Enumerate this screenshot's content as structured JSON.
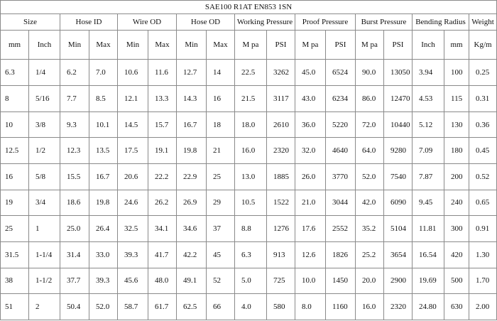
{
  "table": {
    "title": "SAE100 R1AT EN853 1SN",
    "groups": [
      "Size",
      "Hose ID",
      "Wire OD",
      "Hose OD",
      "Working Pressure",
      "Proof Pressure",
      "Burst Pressure",
      "Bending Radius",
      "Weight"
    ],
    "subheaders": [
      "mm",
      "Inch",
      "Min",
      "Max",
      "Min",
      "Max",
      "Min",
      "Max",
      "M pa",
      "PSI",
      "M pa",
      "PSI",
      "M pa",
      "PSI",
      "Inch",
      "mm",
      "Kg/m"
    ],
    "rows": [
      [
        "6.3",
        "1/4",
        "6.2",
        "7.0",
        "10.6",
        "11.6",
        "12.7",
        "14",
        "22.5",
        "3262",
        "45.0",
        "6524",
        "90.0",
        "13050",
        "3.94",
        "100",
        "0.25"
      ],
      [
        "8",
        "5/16",
        "7.7",
        "8.5",
        "12.1",
        "13.3",
        "14.3",
        "16",
        "21.5",
        "3117",
        "43.0",
        "6234",
        "86.0",
        "12470",
        "4.53",
        "115",
        "0.31"
      ],
      [
        "10",
        "3/8",
        "9.3",
        "10.1",
        "14.5",
        "15.7",
        "16.7",
        "18",
        "18.0",
        "2610",
        "36.0",
        "5220",
        "72.0",
        "10440",
        "5.12",
        "130",
        "0.36"
      ],
      [
        "12.5",
        "1/2",
        "12.3",
        "13.5",
        "17.5",
        "19.1",
        "19.8",
        "21",
        "16.0",
        "2320",
        "32.0",
        "4640",
        "64.0",
        "9280",
        "7.09",
        "180",
        "0.45"
      ],
      [
        "16",
        "5/8",
        "15.5",
        "16.7",
        "20.6",
        "22.2",
        "22.9",
        "25",
        "13.0",
        "1885",
        "26.0",
        "3770",
        "52.0",
        "7540",
        "7.87",
        "200",
        "0.52"
      ],
      [
        "19",
        "3/4",
        "18.6",
        "19.8",
        "24.6",
        "26.2",
        "26.9",
        "29",
        "10.5",
        "1522",
        "21.0",
        "3044",
        "42.0",
        "6090",
        "9.45",
        "240",
        "0.65"
      ],
      [
        "25",
        "1",
        "25.0",
        "26.4",
        "32.5",
        "34.1",
        "34.6",
        "37",
        "8.8",
        "1276",
        "17.6",
        "2552",
        "35.2",
        "5104",
        "11.81",
        "300",
        "0.91"
      ],
      [
        "31.5",
        "1-1/4",
        "31.4",
        "33.0",
        "39.3",
        "41.7",
        "42.2",
        "45",
        "6.3",
        "913",
        "12.6",
        "1826",
        "25.2",
        "3654",
        "16.54",
        "420",
        "1.30"
      ],
      [
        "38",
        "1-1/2",
        "37.7",
        "39.3",
        "45.6",
        "48.0",
        "49.1",
        "52",
        "5.0",
        "725",
        "10.0",
        "1450",
        "20.0",
        "2900",
        "19.69",
        "500",
        "1.70"
      ],
      [
        "51",
        "2",
        "50.4",
        "52.0",
        "58.7",
        "61.7",
        "62.5",
        "66",
        "4.0",
        "580",
        "8.0",
        "1160",
        "16.0",
        "2320",
        "24.80",
        "630",
        "2.00"
      ]
    ]
  }
}
